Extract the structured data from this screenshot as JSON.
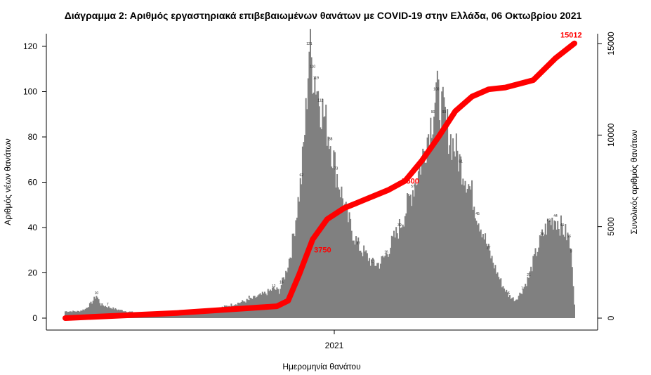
{
  "chart_data": {
    "type": "bar",
    "title": "Διάγραμμα 2: Αριθμός εργαστηριακά επιβεβαιωμένων θανάτων με COVID-19 στην Ελλάδα, 06 Οκτωβρίου 2021",
    "xlabel": "Ημερομηνία θανάτου",
    "ylabel": "Αριθμός νέων θανάτων",
    "ylabel_right": "Συνολικός αριθμός θανάτων",
    "x_tick_labels": [
      "2021"
    ],
    "y_ticks": [
      0,
      20,
      40,
      60,
      80,
      100,
      120
    ],
    "y_ticks_right": [
      0,
      5000,
      10000,
      15000
    ],
    "ylim": [
      0,
      121
    ],
    "ylim_right": [
      0,
      15125
    ],
    "grid": false,
    "series": [
      {
        "type": "bar",
        "color": "#808080",
        "anchors": [
          [
            0,
            3
          ],
          [
            12,
            3
          ],
          [
            18,
            4
          ],
          [
            24,
            7
          ],
          [
            28,
            10
          ],
          [
            32,
            6
          ],
          [
            38,
            5
          ],
          [
            45,
            4
          ],
          [
            55,
            3
          ],
          [
            70,
            2
          ],
          [
            90,
            2
          ],
          [
            110,
            3
          ],
          [
            125,
            3
          ],
          [
            135,
            4
          ],
          [
            150,
            6
          ],
          [
            165,
            8
          ],
          [
            180,
            11
          ],
          [
            187,
            13
          ],
          [
            192,
            12
          ],
          [
            198,
            20
          ],
          [
            203,
            30
          ],
          [
            208,
            48
          ],
          [
            212,
            62
          ],
          [
            216,
            90
          ],
          [
            219,
            120
          ],
          [
            222,
            110
          ],
          [
            225,
            105
          ],
          [
            229,
            95
          ],
          [
            233,
            88
          ],
          [
            238,
            78
          ],
          [
            243,
            65
          ],
          [
            248,
            55
          ],
          [
            253,
            45
          ],
          [
            258,
            38
          ],
          [
            263,
            32
          ],
          [
            270,
            28
          ],
          [
            276,
            24
          ],
          [
            282,
            24
          ],
          [
            288,
            28
          ],
          [
            294,
            34
          ],
          [
            300,
            40
          ],
          [
            306,
            48
          ],
          [
            312,
            57
          ],
          [
            318,
            66
          ],
          [
            324,
            78
          ],
          [
            330,
            90
          ],
          [
            333,
            100
          ],
          [
            336,
            95
          ],
          [
            340,
            90
          ],
          [
            345,
            80
          ],
          [
            350,
            75
          ],
          [
            355,
            68
          ],
          [
            360,
            62
          ],
          [
            365,
            55
          ],
          [
            370,
            45
          ],
          [
            375,
            38
          ],
          [
            380,
            30
          ],
          [
            386,
            22
          ],
          [
            392,
            15
          ],
          [
            398,
            10
          ],
          [
            404,
            8
          ],
          [
            410,
            12
          ],
          [
            416,
            18
          ],
          [
            422,
            28
          ],
          [
            428,
            36
          ],
          [
            434,
            42
          ],
          [
            440,
            44
          ],
          [
            446,
            40
          ],
          [
            452,
            35
          ],
          [
            455,
            25
          ],
          [
            457,
            6
          ]
        ],
        "labels": [
          {
            "day": 28,
            "text": "10"
          },
          {
            "day": 38,
            "text": "7"
          },
          {
            "day": 165,
            "text": "8"
          },
          {
            "day": 187,
            "text": "12"
          },
          {
            "day": 194,
            "text": "16"
          },
          {
            "day": 212,
            "text": "62"
          },
          {
            "day": 219,
            "text": "121"
          },
          {
            "day": 222,
            "text": "110"
          },
          {
            "day": 225,
            "text": "119"
          },
          {
            "day": 229,
            "text": "112"
          },
          {
            "day": 238,
            "text": "88"
          },
          {
            "day": 243,
            "text": "73"
          },
          {
            "day": 263,
            "text": "37"
          },
          {
            "day": 276,
            "text": "18"
          },
          {
            "day": 288,
            "text": "16"
          },
          {
            "day": 300,
            "text": "39"
          },
          {
            "day": 312,
            "text": "57"
          },
          {
            "day": 330,
            "text": "90"
          },
          {
            "day": 333,
            "text": "100"
          },
          {
            "day": 340,
            "text": "93"
          },
          {
            "day": 355,
            "text": "61"
          },
          {
            "day": 370,
            "text": "45"
          },
          {
            "day": 380,
            "text": "27"
          },
          {
            "day": 398,
            "text": "6"
          },
          {
            "day": 410,
            "text": "7"
          },
          {
            "day": 416,
            "text": "21"
          },
          {
            "day": 428,
            "text": "38"
          },
          {
            "day": 434,
            "text": "42"
          },
          {
            "day": 440,
            "text": "44"
          },
          {
            "day": 446,
            "text": "45"
          },
          {
            "day": 452,
            "text": "36"
          },
          {
            "day": 454,
            "text": "9"
          }
        ]
      },
      {
        "type": "line",
        "axis": "right",
        "color": "#ff0000",
        "x": [
          0,
          100,
          190,
          200,
          210,
          222,
          235,
          250,
          270,
          290,
          305,
          320,
          335,
          350,
          365,
          380,
          395,
          420,
          440,
          457
        ],
        "y": [
          0,
          280,
          650,
          950,
          2400,
          4300,
          5400,
          6000,
          6500,
          7000,
          7500,
          8600,
          9900,
          11300,
          12100,
          12500,
          12600,
          13000,
          14200,
          15012
        ]
      }
    ],
    "annotations": [
      {
        "text": "3750",
        "day": 232,
        "value": 3750
      },
      {
        "text": "7500",
        "day": 311,
        "value": 7500
      },
      {
        "text": "15012",
        "day": 457,
        "value": 15012
      }
    ]
  }
}
